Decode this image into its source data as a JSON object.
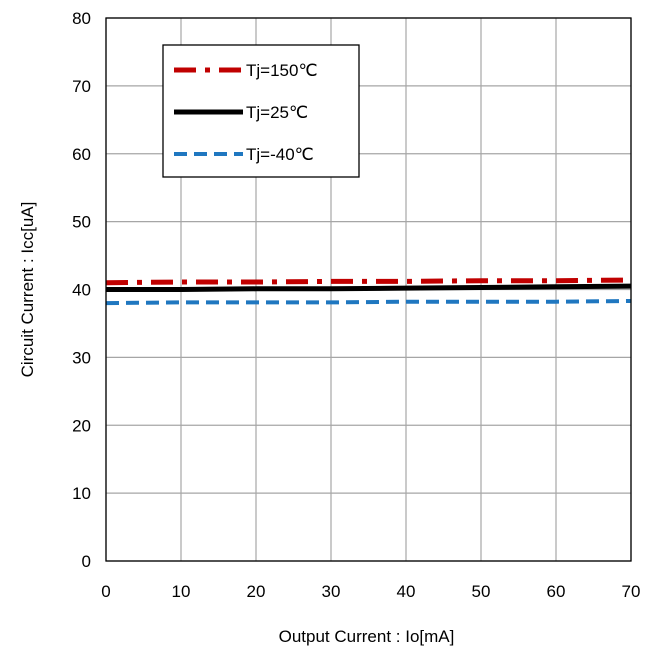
{
  "chart_data": {
    "type": "line",
    "title": "",
    "xlabel": "Output Current : Io[mA]",
    "ylabel": "Circuit Current : Icc[uA]",
    "xlim": [
      0,
      70
    ],
    "ylim": [
      0,
      80
    ],
    "xticks": [
      0,
      10,
      20,
      30,
      40,
      50,
      60,
      70
    ],
    "yticks": [
      0,
      10,
      20,
      30,
      40,
      50,
      60,
      70,
      80
    ],
    "grid": true,
    "legend_position": "top-left",
    "series": [
      {
        "name": "Tj=150℃",
        "color": "#c00000",
        "dash": "dash-dot",
        "x": [
          0,
          10,
          20,
          30,
          40,
          50,
          60,
          70
        ],
        "y": [
          41.0,
          41.1,
          41.1,
          41.2,
          41.2,
          41.3,
          41.3,
          41.4
        ]
      },
      {
        "name": "Tj=25℃",
        "color": "#000000",
        "dash": "solid",
        "x": [
          0,
          10,
          20,
          30,
          40,
          50,
          60,
          70
        ],
        "y": [
          40.0,
          40.0,
          40.1,
          40.1,
          40.2,
          40.3,
          40.4,
          40.5
        ]
      },
      {
        "name": "Tj=-40℃",
        "color": "#1f77c0",
        "dash": "dashed",
        "x": [
          0,
          10,
          20,
          30,
          40,
          50,
          60,
          70
        ],
        "y": [
          38.0,
          38.1,
          38.1,
          38.1,
          38.2,
          38.2,
          38.2,
          38.3
        ]
      }
    ]
  }
}
